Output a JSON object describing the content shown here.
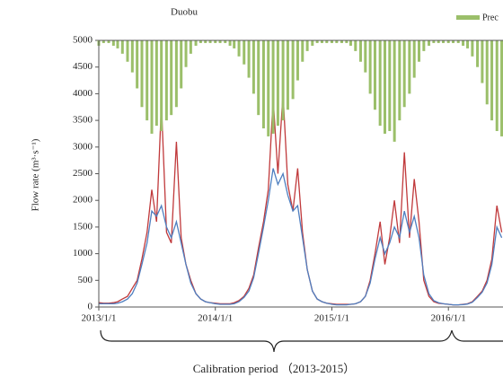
{
  "chart_data": {
    "type": "line",
    "title": "Duobu",
    "y_label": "Flow rate (m³·s⁻¹)",
    "annotation": "Calibration period （2013-2015）",
    "x": [
      "2013/1/1",
      "2013/1/16",
      "2013/2/1",
      "2013/2/16",
      "2013/3/1",
      "2013/3/16",
      "2013/4/1",
      "2013/4/16",
      "2013/5/1",
      "2013/5/16",
      "2013/6/1",
      "2013/6/16",
      "2013/7/1",
      "2013/7/16",
      "2013/8/1",
      "2013/8/16",
      "2013/9/1",
      "2013/9/16",
      "2013/10/1",
      "2013/10/16",
      "2013/11/1",
      "2013/11/16",
      "2013/12/1",
      "2013/12/16",
      "2014/1/1",
      "2014/1/16",
      "2014/2/1",
      "2014/2/16",
      "2014/3/1",
      "2014/3/16",
      "2014/4/1",
      "2014/4/16",
      "2014/5/1",
      "2014/5/16",
      "2014/6/1",
      "2014/6/16",
      "2014/7/1",
      "2014/7/16",
      "2014/8/1",
      "2014/8/16",
      "2014/9/1",
      "2014/9/16",
      "2014/10/1",
      "2014/10/16",
      "2014/11/1",
      "2014/11/16",
      "2014/12/1",
      "2014/12/16",
      "2015/1/1",
      "2015/1/16",
      "2015/2/1",
      "2015/2/16",
      "2015/3/1",
      "2015/3/16",
      "2015/4/1",
      "2015/4/16",
      "2015/5/1",
      "2015/5/16",
      "2015/6/1",
      "2015/6/16",
      "2015/7/1",
      "2015/7/16",
      "2015/8/1",
      "2015/8/16",
      "2015/9/1",
      "2015/9/16",
      "2015/10/1",
      "2015/10/16",
      "2015/11/1",
      "2015/11/16",
      "2015/12/1",
      "2015/12/16",
      "2016/1/1",
      "2016/1/16",
      "2016/2/1",
      "2016/2/16",
      "2016/3/1",
      "2016/3/16",
      "2016/4/1",
      "2016/4/16",
      "2016/5/1",
      "2016/5/16",
      "2016/6/1",
      "2016/6/16"
    ],
    "series": [
      {
        "color": "#c0393b",
        "values": [
          80,
          70,
          70,
          80,
          100,
          150,
          200,
          350,
          500,
          900,
          1400,
          2200,
          1600,
          3800,
          1400,
          1200,
          3100,
          1300,
          800,
          500,
          250,
          150,
          100,
          80,
          70,
          60,
          60,
          60,
          80,
          120,
          200,
          350,
          600,
          1100,
          1600,
          2200,
          3900,
          2500,
          4000,
          2300,
          1800,
          2600,
          1400,
          700,
          300,
          150,
          100,
          70,
          60,
          50,
          50,
          50,
          50,
          60,
          100,
          200,
          500,
          1000,
          1600,
          800,
          1300,
          2000,
          1200,
          2900,
          1300,
          2400,
          1600,
          500,
          200,
          100,
          70,
          60,
          50,
          40,
          40,
          50,
          60,
          100,
          200,
          300,
          500,
          900,
          1900,
          1400
        ]
      },
      {
        "color": "#4f7fc0",
        "values": [
          60,
          60,
          60,
          60,
          70,
          100,
          150,
          250,
          450,
          800,
          1200,
          1800,
          1700,
          1900,
          1500,
          1300,
          1600,
          1200,
          800,
          450,
          250,
          150,
          100,
          80,
          60,
          50,
          50,
          50,
          60,
          100,
          180,
          300,
          550,
          1000,
          1500,
          2000,
          2600,
          2300,
          2500,
          2100,
          1800,
          1900,
          1300,
          700,
          300,
          150,
          100,
          70,
          50,
          40,
          40,
          40,
          50,
          60,
          100,
          200,
          450,
          900,
          1300,
          1000,
          1200,
          1500,
          1300,
          1800,
          1400,
          1700,
          1300,
          600,
          250,
          120,
          80,
          60,
          50,
          40,
          40,
          45,
          55,
          90,
          180,
          280,
          450,
          800,
          1500,
          1300
        ]
      },
      {
        "name": "Prec",
        "type": "bar",
        "axis": "y2",
        "color": "#9bbf6a",
        "values": [
          2,
          1,
          1,
          2,
          3,
          5,
          8,
          12,
          18,
          25,
          30,
          35,
          32,
          34,
          30,
          28,
          25,
          18,
          10,
          5,
          2,
          1,
          1,
          1,
          1,
          1,
          1,
          2,
          3,
          6,
          9,
          14,
          20,
          28,
          33,
          36,
          35,
          32,
          30,
          26,
          22,
          15,
          8,
          4,
          2,
          1,
          1,
          1,
          1,
          1,
          1,
          1,
          2,
          4,
          8,
          12,
          20,
          26,
          32,
          35,
          34,
          38,
          30,
          25,
          20,
          14,
          8,
          4,
          2,
          1,
          1,
          1,
          1,
          1,
          1,
          2,
          3,
          6,
          10,
          16,
          24,
          30,
          34,
          36
        ]
      }
    ],
    "xlim": [
      "2013/1/1",
      "2016/6/20"
    ],
    "xticks": [
      "2013/1/1",
      "2014/1/1",
      "2015/1/1",
      "2016/1/1"
    ],
    "ylim": [
      0,
      5000
    ],
    "yticks": [
      0,
      500,
      1000,
      1500,
      2000,
      2500,
      3000,
      3500,
      4000,
      4500,
      5000
    ],
    "y2lim": [
      0,
      100
    ]
  }
}
